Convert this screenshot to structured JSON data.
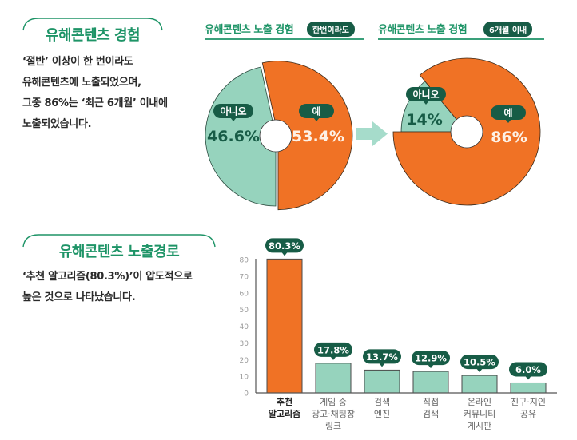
{
  "section1": {
    "title": "유해콘텐츠 경험",
    "description": [
      "‘절반’ 이상이 한 번이라도",
      "유해콘텐츠에 노출되었으며,",
      "그중 86%는 ‘최근 6개월’ 이내에",
      "노출되었습니다."
    ]
  },
  "section2": {
    "title": "유해콘텐츠 노출경로",
    "description": [
      "‘추천 알고리즘(80.3%)’이 압도적으로",
      "높은 것으로 나타났습니다."
    ]
  },
  "colors": {
    "green_title": "#1e9467",
    "dark_green": "#175c46",
    "orange": "#f07225",
    "teal": "#96d3bd",
    "arrow": "#a6dccb"
  },
  "chart_data": [
    {
      "type": "pie",
      "title": "유해콘텐츠 노출 경험",
      "badge": "한번이라도",
      "labels": [
        "아니오",
        "예"
      ],
      "values": [
        46.6,
        53.4
      ],
      "value_labels": [
        "46.6%",
        "53.4%"
      ]
    },
    {
      "type": "pie",
      "title": "유해콘텐츠 노출 경험",
      "badge": "6개월 이내",
      "labels": [
        "아니오",
        "예"
      ],
      "values": [
        14,
        86
      ],
      "value_labels": [
        "14%",
        "86%"
      ]
    },
    {
      "type": "bar",
      "categories": [
        [
          "추천",
          "알고리즘"
        ],
        [
          "게임 중",
          "광고·채팅창",
          "링크"
        ],
        [
          "검색",
          "엔진"
        ],
        [
          "직접",
          "검색"
        ],
        [
          "온라인",
          "커뮤니티",
          "게시판"
        ],
        [
          "친구·지인",
          "공유"
        ]
      ],
      "values": [
        80.3,
        17.8,
        13.7,
        12.9,
        10.5,
        6.0
      ],
      "value_labels": [
        "80.3%",
        "17.8%",
        "13.7%",
        "12.9%",
        "10.5%",
        "6.0%"
      ],
      "highlight_index": 0,
      "yticks": [
        0,
        10,
        20,
        30,
        40,
        50,
        60,
        70,
        80
      ],
      "ylim": [
        0,
        80
      ],
      "grid": false
    }
  ]
}
